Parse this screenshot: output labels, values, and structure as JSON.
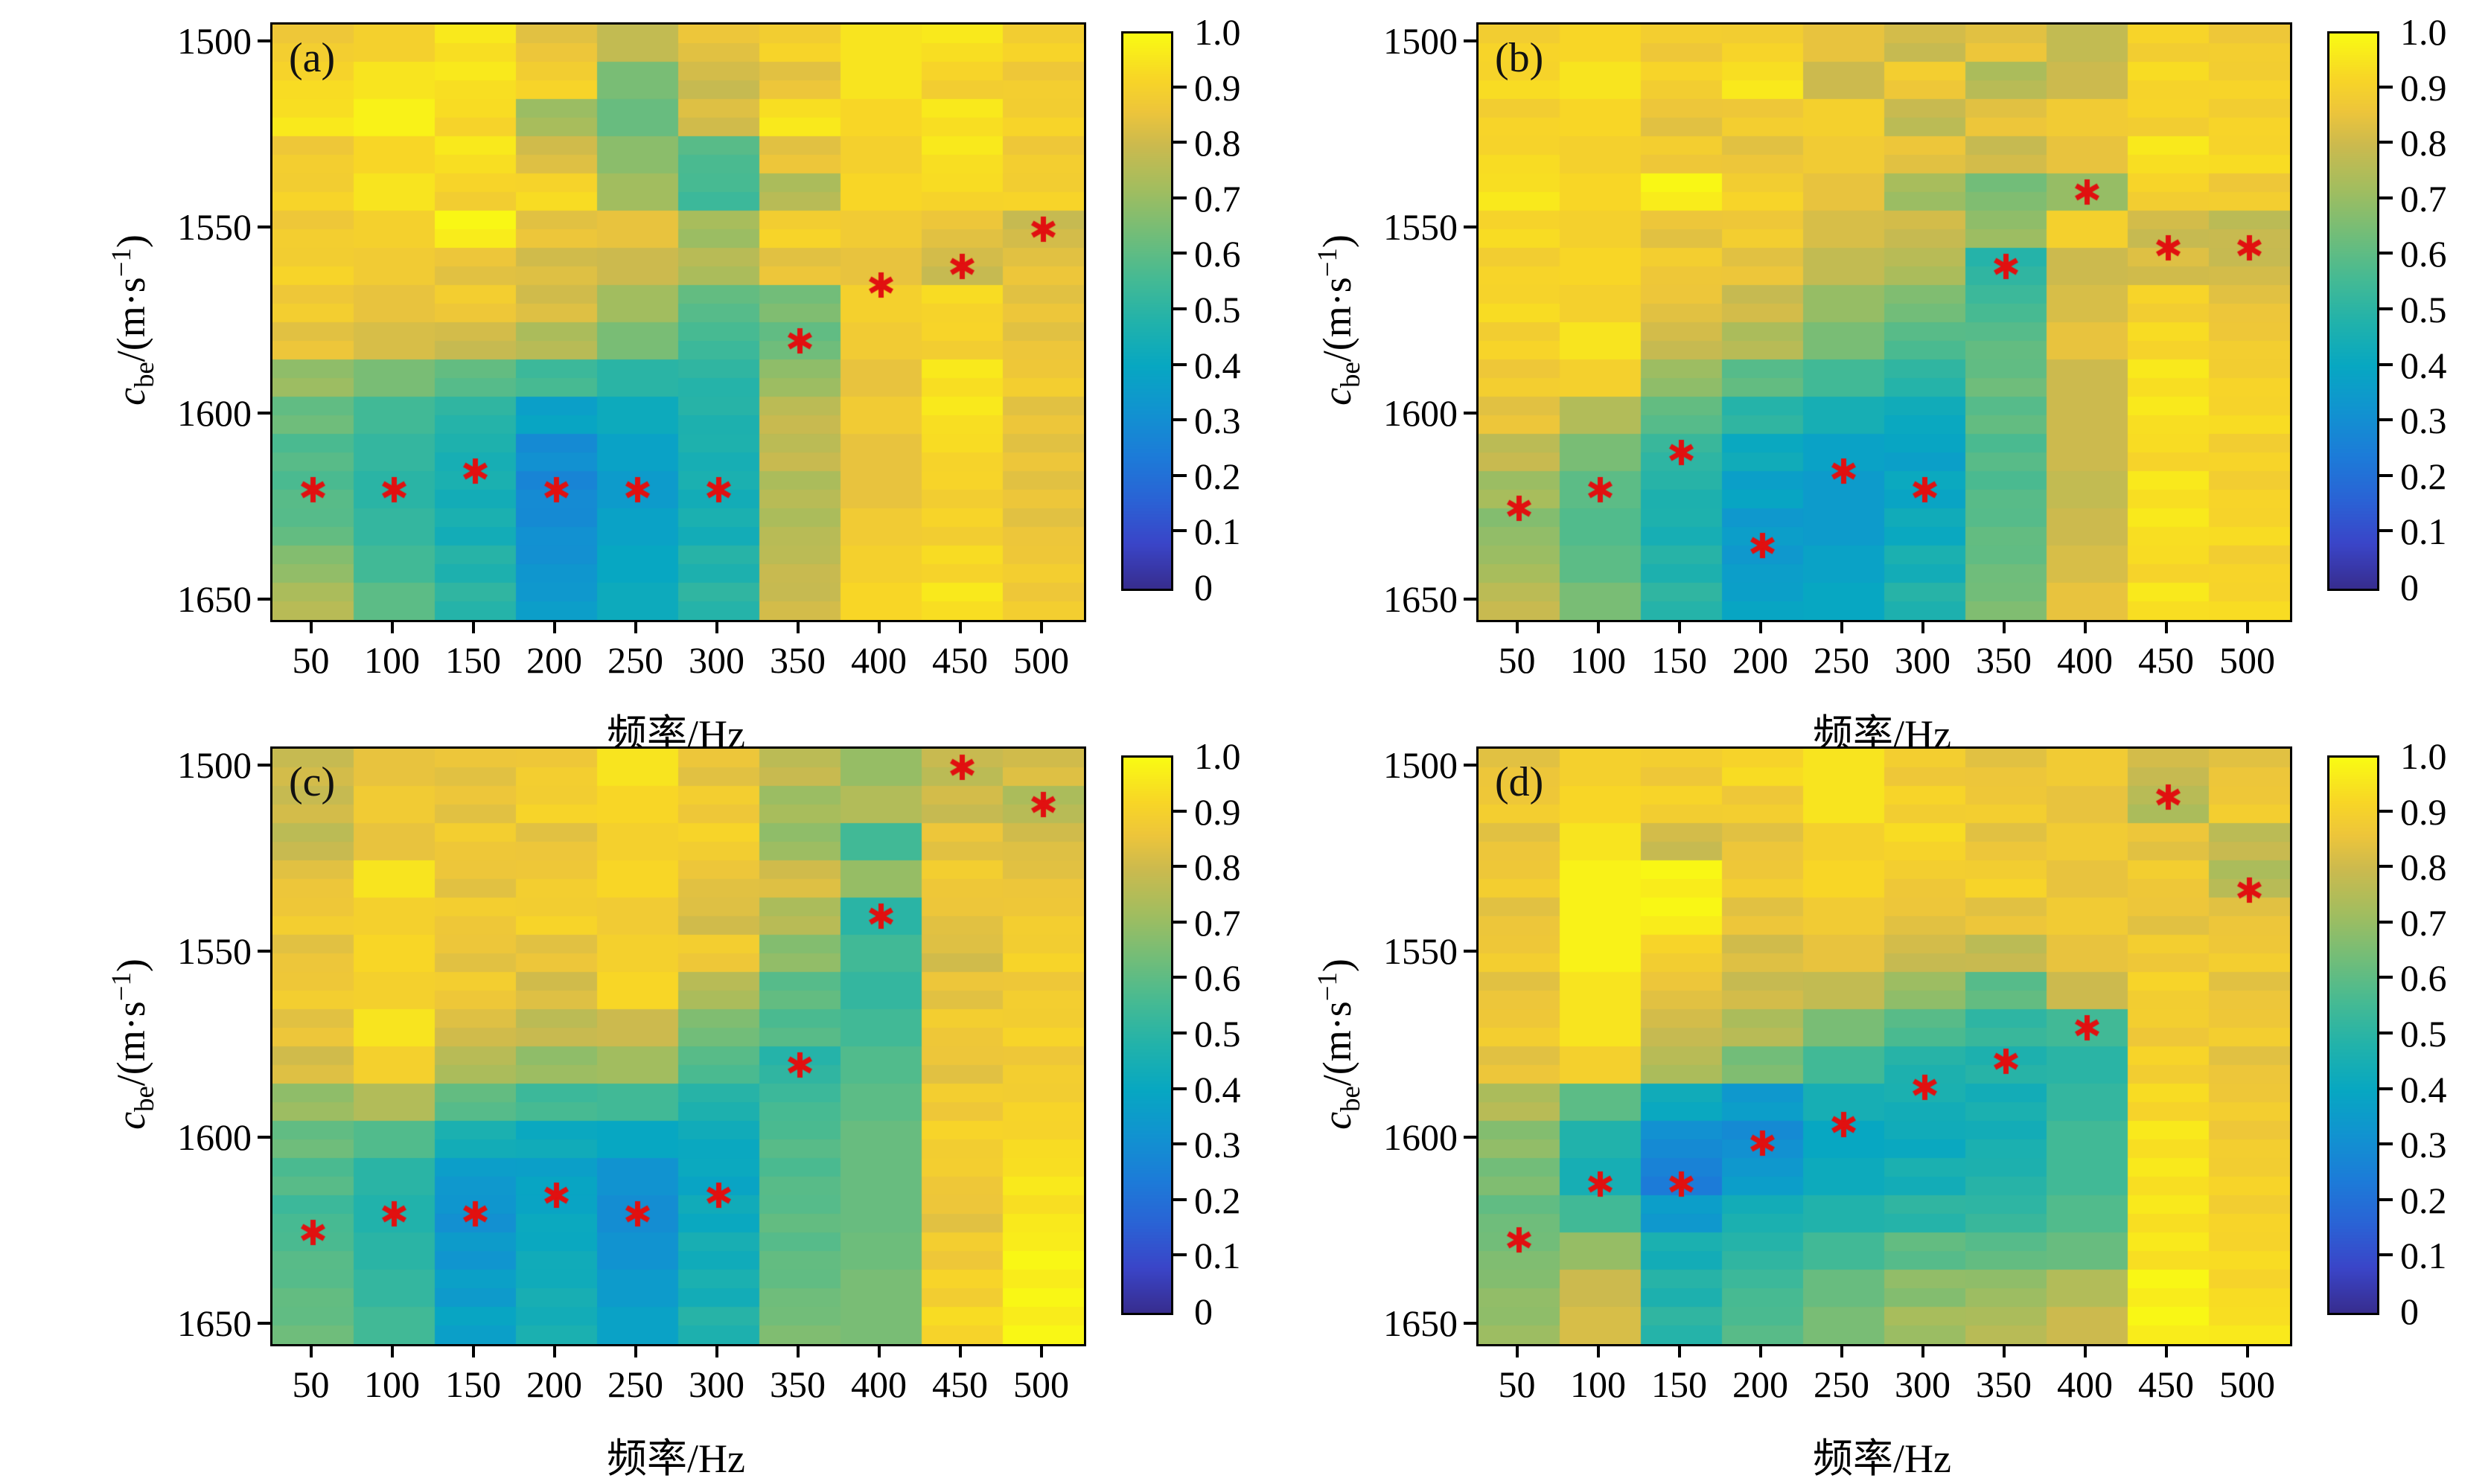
{
  "figure": {
    "background": "#ffffff",
    "marker": {
      "shape": "asterisk-6-spoke",
      "color": "#e11010",
      "radius": 17,
      "stroke": 7
    },
    "colormap_name": "parula",
    "colormap_stops": [
      [
        0.0,
        "#372d8f"
      ],
      [
        0.08,
        "#3a45c8"
      ],
      [
        0.16,
        "#2a63d5"
      ],
      [
        0.24,
        "#1c7cd8"
      ],
      [
        0.32,
        "#1193d0"
      ],
      [
        0.4,
        "#07a7c2"
      ],
      [
        0.48,
        "#21b2ab"
      ],
      [
        0.56,
        "#46ba93"
      ],
      [
        0.64,
        "#73bd78"
      ],
      [
        0.72,
        "#a2bd5f"
      ],
      [
        0.8,
        "#ccba4e"
      ],
      [
        0.86,
        "#edc53b"
      ],
      [
        0.92,
        "#f8d626"
      ],
      [
        1.0,
        "#f9fb13"
      ]
    ],
    "colorbar": {
      "min": 0,
      "max": 1,
      "tick_labels": [
        "1.0",
        "0.9",
        "0.8",
        "0.7",
        "0.6",
        "0.5",
        "0.4",
        "0.3",
        "0.2",
        "0.1",
        "0"
      ],
      "tick_values": [
        1.0,
        0.9,
        0.8,
        0.7,
        0.6,
        0.5,
        0.4,
        0.3,
        0.2,
        0.1,
        0
      ]
    }
  },
  "axes": {
    "x": {
      "label": "频率/Hz",
      "tick_labels": [
        "50",
        "100",
        "150",
        "200",
        "250",
        "300",
        "350",
        "400",
        "450",
        "500"
      ],
      "tick_values": [
        50,
        100,
        150,
        200,
        250,
        300,
        350,
        400,
        450,
        500
      ],
      "min": 25,
      "max": 525
    },
    "y": {
      "label": {
        "var": "c",
        "sub": "be",
        "mid": "/(m·s",
        "sup": "−1",
        "close": ")",
        "text": "cbe/(m·s−1)"
      },
      "tick_labels": [
        "1500",
        "1550",
        "1600",
        "1650"
      ],
      "tick_values": [
        1500,
        1550,
        1600,
        1650
      ],
      "min": 1495,
      "max": 1655,
      "inverted": true
    }
  },
  "chart_data": [
    {
      "type": "heatmap",
      "panel": "(a)",
      "xlabel": "频率/Hz",
      "ylabel": "cbe/(m·s−1)",
      "x": [
        50,
        100,
        150,
        200,
        250,
        300,
        350,
        400,
        450,
        500
      ],
      "y": [
        1500,
        1510,
        1520,
        1530,
        1540,
        1550,
        1560,
        1570,
        1580,
        1590,
        1600,
        1610,
        1620,
        1630,
        1640,
        1650
      ],
      "values": [
        [
          0.88,
          0.9,
          0.95,
          0.85,
          0.78,
          0.85,
          0.9,
          0.95,
          0.95,
          0.9
        ],
        [
          0.92,
          0.95,
          0.95,
          0.9,
          0.65,
          0.8,
          0.85,
          0.95,
          0.9,
          0.88
        ],
        [
          0.95,
          0.98,
          0.92,
          0.72,
          0.62,
          0.82,
          0.95,
          0.92,
          0.95,
          0.9
        ],
        [
          0.88,
          0.92,
          0.95,
          0.82,
          0.68,
          0.58,
          0.85,
          0.9,
          0.95,
          0.88
        ],
        [
          0.9,
          0.95,
          0.9,
          0.92,
          0.72,
          0.55,
          0.75,
          0.92,
          0.92,
          0.9
        ],
        [
          0.88,
          0.9,
          0.98,
          0.85,
          0.85,
          0.72,
          0.9,
          0.88,
          0.85,
          0.8
        ],
        [
          0.9,
          0.88,
          0.85,
          0.82,
          0.8,
          0.75,
          0.85,
          0.85,
          0.8,
          0.85
        ],
        [
          0.88,
          0.85,
          0.88,
          0.82,
          0.72,
          0.6,
          0.65,
          0.9,
          0.92,
          0.85
        ],
        [
          0.85,
          0.82,
          0.8,
          0.75,
          0.65,
          0.55,
          0.62,
          0.88,
          0.9,
          0.85
        ],
        [
          0.7,
          0.65,
          0.6,
          0.55,
          0.5,
          0.5,
          0.7,
          0.85,
          0.95,
          0.88
        ],
        [
          0.62,
          0.55,
          0.5,
          0.38,
          0.42,
          0.48,
          0.78,
          0.88,
          0.95,
          0.85
        ],
        [
          0.58,
          0.52,
          0.46,
          0.3,
          0.38,
          0.46,
          0.78,
          0.85,
          0.92,
          0.85
        ],
        [
          0.58,
          0.5,
          0.45,
          0.28,
          0.35,
          0.45,
          0.75,
          0.85,
          0.9,
          0.85
        ],
        [
          0.6,
          0.52,
          0.45,
          0.3,
          0.38,
          0.45,
          0.75,
          0.88,
          0.9,
          0.85
        ],
        [
          0.68,
          0.55,
          0.48,
          0.32,
          0.4,
          0.48,
          0.78,
          0.9,
          0.92,
          0.88
        ],
        [
          0.75,
          0.6,
          0.5,
          0.35,
          0.42,
          0.5,
          0.8,
          0.92,
          0.95,
          0.88
        ]
      ],
      "markers": [
        [
          50,
          1620
        ],
        [
          100,
          1620
        ],
        [
          150,
          1615
        ],
        [
          200,
          1620
        ],
        [
          250,
          1620
        ],
        [
          300,
          1620
        ],
        [
          350,
          1580
        ],
        [
          400,
          1565
        ],
        [
          450,
          1560
        ],
        [
          500,
          1550
        ]
      ]
    },
    {
      "type": "heatmap",
      "panel": "(b)",
      "xlabel": "频率/Hz",
      "ylabel": "cbe/(m·s−1)",
      "x": [
        50,
        100,
        150,
        200,
        250,
        300,
        350,
        400,
        450,
        500
      ],
      "y": [
        1500,
        1510,
        1520,
        1530,
        1540,
        1550,
        1560,
        1570,
        1580,
        1590,
        1600,
        1610,
        1620,
        1630,
        1640,
        1650
      ],
      "values": [
        [
          0.9,
          0.92,
          0.88,
          0.9,
          0.85,
          0.8,
          0.85,
          0.78,
          0.9,
          0.88
        ],
        [
          0.92,
          0.95,
          0.9,
          0.95,
          0.8,
          0.88,
          0.75,
          0.8,
          0.92,
          0.9
        ],
        [
          0.9,
          0.92,
          0.85,
          0.88,
          0.9,
          0.78,
          0.85,
          0.88,
          0.9,
          0.9
        ],
        [
          0.92,
          0.9,
          0.88,
          0.85,
          0.88,
          0.85,
          0.8,
          0.85,
          0.95,
          0.92
        ],
        [
          0.95,
          0.92,
          0.98,
          0.9,
          0.85,
          0.72,
          0.65,
          0.7,
          0.9,
          0.88
        ],
        [
          0.92,
          0.9,
          0.85,
          0.88,
          0.82,
          0.8,
          0.7,
          0.9,
          0.8,
          0.78
        ],
        [
          0.9,
          0.92,
          0.88,
          0.85,
          0.78,
          0.75,
          0.5,
          0.8,
          0.82,
          0.8
        ],
        [
          0.92,
          0.9,
          0.85,
          0.8,
          0.7,
          0.65,
          0.55,
          0.82,
          0.9,
          0.85
        ],
        [
          0.9,
          0.95,
          0.8,
          0.75,
          0.65,
          0.58,
          0.6,
          0.85,
          0.92,
          0.88
        ],
        [
          0.88,
          0.9,
          0.7,
          0.6,
          0.55,
          0.5,
          0.62,
          0.8,
          0.95,
          0.9
        ],
        [
          0.85,
          0.75,
          0.6,
          0.5,
          0.45,
          0.42,
          0.6,
          0.8,
          0.95,
          0.92
        ],
        [
          0.78,
          0.65,
          0.52,
          0.42,
          0.38,
          0.38,
          0.58,
          0.8,
          0.92,
          0.9
        ],
        [
          0.72,
          0.6,
          0.48,
          0.38,
          0.35,
          0.4,
          0.58,
          0.78,
          0.95,
          0.9
        ],
        [
          0.68,
          0.58,
          0.46,
          0.35,
          0.35,
          0.42,
          0.6,
          0.8,
          0.95,
          0.92
        ],
        [
          0.72,
          0.6,
          0.48,
          0.35,
          0.38,
          0.45,
          0.62,
          0.82,
          0.92,
          0.9
        ],
        [
          0.78,
          0.65,
          0.5,
          0.38,
          0.4,
          0.48,
          0.65,
          0.85,
          0.95,
          0.92
        ]
      ],
      "markers": [
        [
          50,
          1625
        ],
        [
          100,
          1620
        ],
        [
          150,
          1610
        ],
        [
          200,
          1635
        ],
        [
          250,
          1615
        ],
        [
          300,
          1620
        ],
        [
          350,
          1560
        ],
        [
          400,
          1540
        ],
        [
          450,
          1555
        ],
        [
          500,
          1555
        ]
      ]
    },
    {
      "type": "heatmap",
      "panel": "(c)",
      "xlabel": "频率/Hz",
      "ylabel": "cbe/(m·s−1)",
      "x": [
        50,
        100,
        150,
        200,
        250,
        300,
        350,
        400,
        450,
        500
      ],
      "y": [
        1500,
        1510,
        1520,
        1530,
        1540,
        1550,
        1560,
        1570,
        1580,
        1590,
        1600,
        1610,
        1620,
        1630,
        1640,
        1650
      ],
      "values": [
        [
          0.8,
          0.85,
          0.85,
          0.88,
          0.95,
          0.85,
          0.78,
          0.7,
          0.78,
          0.82
        ],
        [
          0.8,
          0.88,
          0.85,
          0.9,
          0.92,
          0.88,
          0.72,
          0.75,
          0.8,
          0.75
        ],
        [
          0.78,
          0.85,
          0.88,
          0.85,
          0.9,
          0.9,
          0.7,
          0.55,
          0.85,
          0.82
        ],
        [
          0.85,
          0.95,
          0.85,
          0.88,
          0.92,
          0.85,
          0.82,
          0.7,
          0.88,
          0.85
        ],
        [
          0.88,
          0.9,
          0.88,
          0.9,
          0.88,
          0.82,
          0.75,
          0.5,
          0.85,
          0.88
        ],
        [
          0.85,
          0.92,
          0.85,
          0.85,
          0.9,
          0.88,
          0.68,
          0.55,
          0.82,
          0.9
        ],
        [
          0.88,
          0.9,
          0.88,
          0.82,
          0.92,
          0.75,
          0.6,
          0.52,
          0.85,
          0.88
        ],
        [
          0.85,
          0.95,
          0.82,
          0.78,
          0.8,
          0.65,
          0.58,
          0.55,
          0.88,
          0.9
        ],
        [
          0.82,
          0.9,
          0.75,
          0.7,
          0.72,
          0.58,
          0.5,
          0.58,
          0.85,
          0.88
        ],
        [
          0.7,
          0.75,
          0.6,
          0.55,
          0.55,
          0.48,
          0.55,
          0.6,
          0.88,
          0.9
        ],
        [
          0.62,
          0.58,
          0.45,
          0.42,
          0.4,
          0.42,
          0.58,
          0.62,
          0.9,
          0.92
        ],
        [
          0.58,
          0.5,
          0.35,
          0.38,
          0.32,
          0.4,
          0.58,
          0.62,
          0.88,
          0.95
        ],
        [
          0.55,
          0.48,
          0.32,
          0.4,
          0.3,
          0.42,
          0.6,
          0.62,
          0.85,
          0.95
        ],
        [
          0.58,
          0.5,
          0.34,
          0.42,
          0.32,
          0.44,
          0.6,
          0.63,
          0.88,
          0.98
        ],
        [
          0.6,
          0.52,
          0.36,
          0.44,
          0.35,
          0.45,
          0.62,
          0.65,
          0.9,
          0.98
        ],
        [
          0.62,
          0.55,
          0.38,
          0.45,
          0.38,
          0.48,
          0.65,
          0.65,
          0.92,
          0.98
        ]
      ],
      "markers": [
        [
          50,
          1625
        ],
        [
          100,
          1620
        ],
        [
          150,
          1620
        ],
        [
          200,
          1615
        ],
        [
          250,
          1620
        ],
        [
          300,
          1615
        ],
        [
          350,
          1580
        ],
        [
          400,
          1540
        ],
        [
          450,
          1500
        ],
        [
          500,
          1510
        ]
      ]
    },
    {
      "type": "heatmap",
      "panel": "(d)",
      "xlabel": "频率/Hz",
      "ylabel": "cbe/(m·s−1)",
      "x": [
        50,
        100,
        150,
        200,
        250,
        300,
        350,
        400,
        450,
        500
      ],
      "y": [
        1500,
        1510,
        1520,
        1530,
        1540,
        1550,
        1560,
        1570,
        1580,
        1590,
        1600,
        1610,
        1620,
        1630,
        1640,
        1650
      ],
      "values": [
        [
          0.85,
          0.9,
          0.88,
          0.92,
          0.95,
          0.88,
          0.85,
          0.88,
          0.8,
          0.85
        ],
        [
          0.88,
          0.92,
          0.9,
          0.88,
          0.95,
          0.9,
          0.88,
          0.85,
          0.75,
          0.88
        ],
        [
          0.85,
          0.95,
          0.8,
          0.85,
          0.9,
          0.92,
          0.85,
          0.88,
          0.85,
          0.78
        ],
        [
          0.88,
          0.98,
          0.98,
          0.88,
          0.92,
          0.88,
          0.9,
          0.85,
          0.88,
          0.75
        ],
        [
          0.85,
          0.98,
          0.98,
          0.85,
          0.88,
          0.85,
          0.85,
          0.88,
          0.85,
          0.85
        ],
        [
          0.88,
          0.98,
          0.9,
          0.82,
          0.85,
          0.8,
          0.78,
          0.85,
          0.88,
          0.88
        ],
        [
          0.85,
          0.95,
          0.85,
          0.8,
          0.78,
          0.7,
          0.6,
          0.8,
          0.9,
          0.85
        ],
        [
          0.88,
          0.95,
          0.8,
          0.75,
          0.65,
          0.58,
          0.52,
          0.55,
          0.88,
          0.88
        ],
        [
          0.85,
          0.9,
          0.75,
          0.65,
          0.55,
          0.48,
          0.48,
          0.5,
          0.9,
          0.85
        ],
        [
          0.75,
          0.6,
          0.42,
          0.35,
          0.45,
          0.45,
          0.45,
          0.52,
          0.92,
          0.88
        ],
        [
          0.68,
          0.48,
          0.3,
          0.3,
          0.4,
          0.42,
          0.45,
          0.55,
          0.95,
          0.88
        ],
        [
          0.65,
          0.45,
          0.25,
          0.35,
          0.42,
          0.45,
          0.48,
          0.55,
          0.95,
          0.9
        ],
        [
          0.62,
          0.55,
          0.35,
          0.45,
          0.48,
          0.5,
          0.52,
          0.58,
          0.95,
          0.9
        ],
        [
          0.65,
          0.7,
          0.45,
          0.5,
          0.55,
          0.6,
          0.6,
          0.62,
          0.95,
          0.92
        ],
        [
          0.68,
          0.8,
          0.48,
          0.55,
          0.62,
          0.68,
          0.7,
          0.75,
          0.98,
          0.92
        ],
        [
          0.7,
          0.82,
          0.5,
          0.58,
          0.65,
          0.72,
          0.75,
          0.8,
          0.98,
          0.95
        ]
      ],
      "markers": [
        [
          50,
          1627
        ],
        [
          100,
          1612
        ],
        [
          150,
          1612
        ],
        [
          200,
          1601
        ],
        [
          250,
          1596
        ],
        [
          300,
          1586
        ],
        [
          350,
          1579
        ],
        [
          400,
          1570
        ],
        [
          450,
          1508
        ],
        [
          500,
          1533
        ]
      ]
    }
  ]
}
